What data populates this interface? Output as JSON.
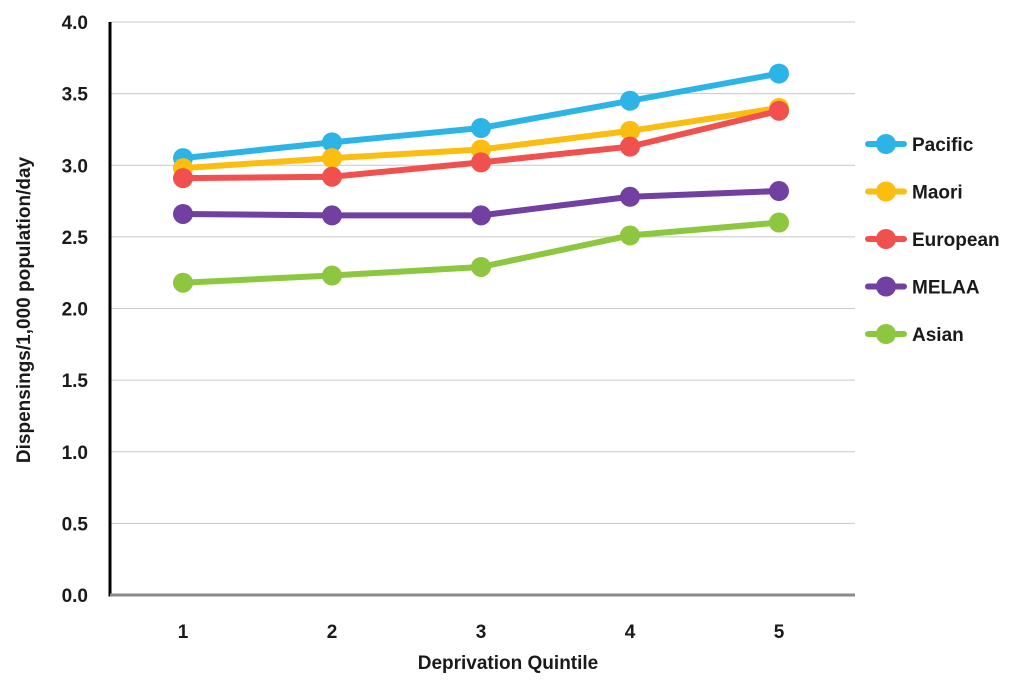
{
  "chart_data": {
    "type": "line",
    "title": "",
    "xlabel": "Deprivation Quintile",
    "ylabel": "Dispensings/1,000 population/day",
    "categories": [
      "1",
      "2",
      "3",
      "4",
      "5"
    ],
    "ylim": [
      0,
      4.0
    ],
    "yticks": [
      "0.0",
      "0.5",
      "1.0",
      "1.5",
      "2.0",
      "2.5",
      "3.0",
      "3.5",
      "4.0"
    ],
    "grid": true,
    "legend_position": "right",
    "series": [
      {
        "name": "Pacific",
        "color": "#2db4e6",
        "values": [
          3.05,
          3.16,
          3.26,
          3.45,
          3.64
        ]
      },
      {
        "name": "Maori",
        "color": "#fbbd0f",
        "values": [
          2.98,
          3.05,
          3.11,
          3.24,
          3.4
        ]
      },
      {
        "name": "European",
        "color": "#f0504e",
        "values": [
          2.91,
          2.92,
          3.02,
          3.13,
          3.38
        ]
      },
      {
        "name": "MELAA",
        "color": "#7140a0",
        "values": [
          2.66,
          2.65,
          2.65,
          2.78,
          2.82
        ]
      },
      {
        "name": "Asian",
        "color": "#8dc63f",
        "values": [
          2.18,
          2.23,
          2.29,
          2.51,
          2.6
        ]
      }
    ]
  }
}
